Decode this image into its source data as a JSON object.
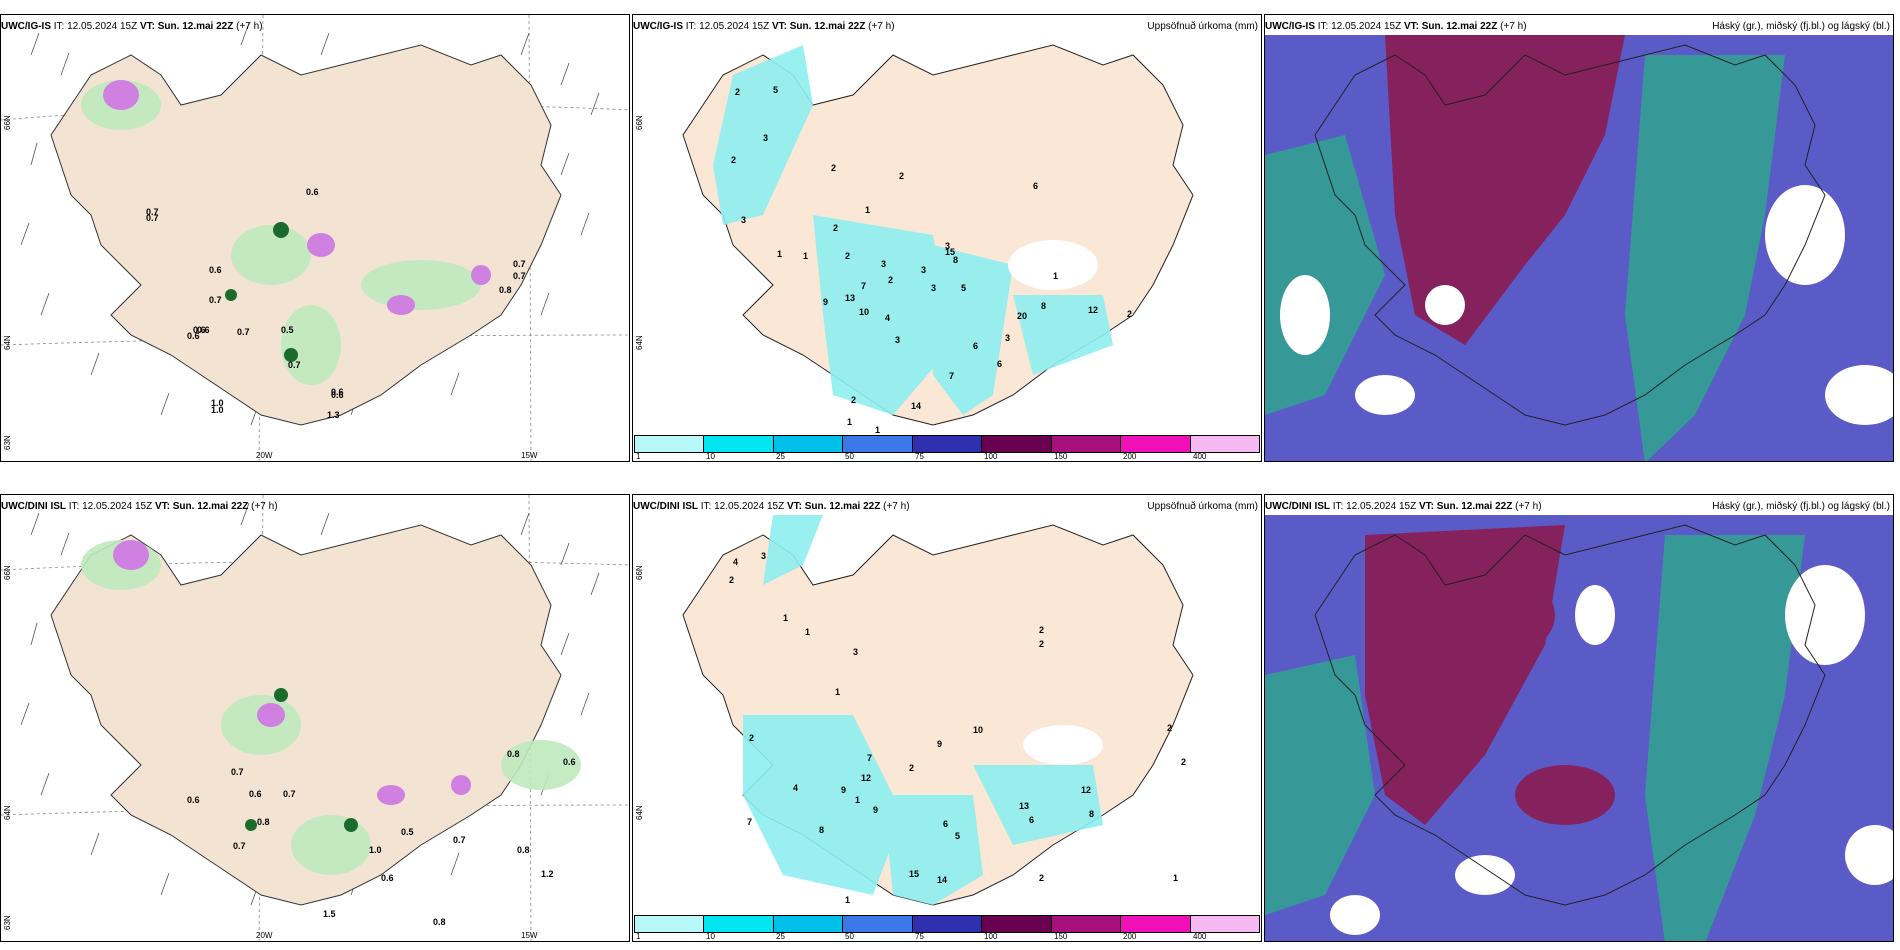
{
  "top_row": {
    "p1": {
      "title_left": "UWC/IG-IS",
      "title_it": "IT: 12.05.2024 15Z",
      "title_vt": "VT: Sun. 12.mai 22Z",
      "title_lead": "(+7 h)"
    },
    "p2": {
      "title_left": "UWC/IG-IS",
      "title_it": "IT: 12.05.2024 15Z",
      "title_vt": "VT: Sun. 12.mai 22Z",
      "title_lead": "(+7 h)",
      "title_right": "Uppsöfnuð úrkoma (mm)"
    },
    "p3": {
      "title_left": "UWC/IG-IS",
      "title_it": "IT: 12.05.2024 15Z",
      "title_vt": "VT: Sun. 12.mai 22Z",
      "title_lead": "(+7 h)",
      "title_right": "Háský (gr.), miðský (fj.bl.) og lágský (bl.)"
    }
  },
  "bottom_row": {
    "p1": {
      "title_left": "UWC/DINI ISL",
      "title_it": "IT: 12.05.2024 15Z",
      "title_vt": "VT: Sun. 12.mai 22Z",
      "title_lead": "(+7 h)"
    },
    "p2": {
      "title_left": "UWC/DINI ISL",
      "title_it": "IT: 12.05.2024 15Z",
      "title_vt": "VT: Sun. 12.mai 22Z",
      "title_lead": "(+7 h)",
      "title_right": "Uppsöfnuð úrkoma (mm)"
    },
    "p3": {
      "title_left": "UWC/DINI ISL",
      "title_it": "IT: 12.05.2024 15Z",
      "title_vt": "VT: Sun. 12.mai 22Z",
      "title_lead": "(+7 h)",
      "title_right": "Háský (gr.), miðský (fj.bl.) og lágský (bl.)"
    }
  },
  "axes": {
    "lat_66": "66N",
    "lat_64": "64N",
    "lat_63": "63N",
    "lon_20": "20W",
    "lon_15": "15W"
  },
  "legend": {
    "ticks": [
      "1",
      "10",
      "25",
      "50",
      "75",
      "100",
      "150",
      "200",
      "400"
    ],
    "colors": [
      "#b8f7f7",
      "#00e5f0",
      "#00bfe8",
      "#3a78e8",
      "#2f2fb0",
      "#6a0050",
      "#a8107e",
      "#f010b8",
      "#f5b8f0"
    ]
  },
  "precip_labels_top": [
    "2",
    "5",
    "3",
    "2",
    "3",
    "1",
    "2",
    "2",
    "1",
    "2",
    "6",
    "2",
    "3",
    "3",
    "8",
    "3",
    "5",
    "3",
    "15",
    "1",
    "1",
    "7",
    "2",
    "9",
    "13",
    "10",
    "4",
    "3",
    "6",
    "3",
    "7",
    "6",
    "20",
    "8",
    "12",
    "2",
    "14",
    "2",
    "1",
    "1"
  ],
  "precip_labels_bottom": [
    "4",
    "3",
    "2",
    "1",
    "1",
    "3",
    "2",
    "2",
    "1",
    "2",
    "10",
    "9",
    "7",
    "12",
    "2",
    "4",
    "8",
    "9",
    "7",
    "1",
    "9",
    "6",
    "5",
    "13",
    "6",
    "12",
    "8",
    "2",
    "2",
    "15",
    "14",
    "2",
    "1",
    "1"
  ],
  "wind_labels_top": [
    "0.7",
    "0.6",
    "0.6",
    "0.7",
    "0.6",
    "1.0",
    "0.7",
    "0.6",
    "0.7",
    "0.6",
    "0.5",
    "0.7",
    "1.3",
    "0.6",
    "1.0",
    "0.6",
    "0.7",
    "0.8",
    "0.7"
  ],
  "wind_labels_bottom": [
    "0.6",
    "0.7",
    "0.6",
    "0.8",
    "0.7",
    "0.7",
    "1.0",
    "0.5",
    "0.7",
    "0.8",
    "1.2",
    "0.6",
    "0.8",
    "0.8",
    "1.5",
    "0.6"
  ]
}
